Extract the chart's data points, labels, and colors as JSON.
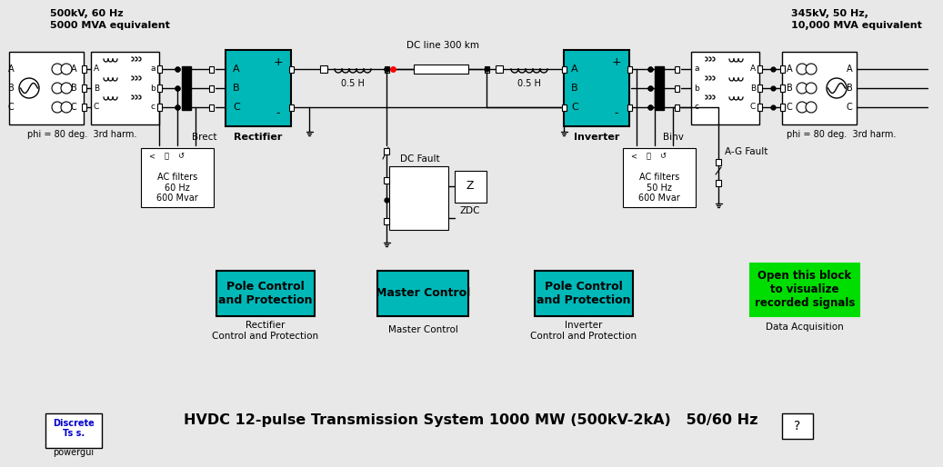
{
  "bg_color": "#e8e8e8",
  "title_text": "HVDC 12-pulse Transmission System 1000 MW (500kV-2kA)   50/60 Hz",
  "left_label1": "500kV, 60 Hz",
  "left_label2": "5000 MVA equivalent",
  "right_label1": "345kV, 50 Hz,",
  "right_label2": "10,000 MVA equivalent",
  "dc_line_label": "DC line 300 km",
  "rectifier_label": "Rectifier",
  "inverter_label": "Inverter",
  "brect_label": "Brect",
  "binv_label": "Binv",
  "phi_left": "phi = 80 deg.  3rd harm.",
  "phi_right": "phi = 80 deg.  3rd harm.",
  "ac_filters_left": "AC filters\n60 Hz\n600 Mvar",
  "ac_filters_right": "AC filters\n50 Hz\n600 Mvar",
  "dc_fault_label": "DC Fault",
  "zdc_label": "ZDC",
  "ag_fault_label": "A-G Fault",
  "ind_left": "0.5 H",
  "ind_right": "0.5 H",
  "pole_ctrl_rect": "Pole Control\nand Protection",
  "pole_ctrl_inv": "Pole Control\nand Protection",
  "master_ctrl": "Master Control",
  "data_acq": "Open this block\nto visualize\nrecorded signals",
  "rect_ctrl_label1": "Rectifier",
  "rect_ctrl_label2": "Control and Protection",
  "master_ctrl_label": "Master Control",
  "inv_ctrl_label1": "Inverter",
  "inv_ctrl_label2": "Control and Protection",
  "data_acq_label": "Data Acquisition",
  "powergui_label1": "Discrete",
  "powergui_label2": "Ts s.",
  "powergui_label3": "powergui",
  "teal_color": "#00B8B8",
  "green_color": "#00DD00",
  "line_color": "#000000"
}
